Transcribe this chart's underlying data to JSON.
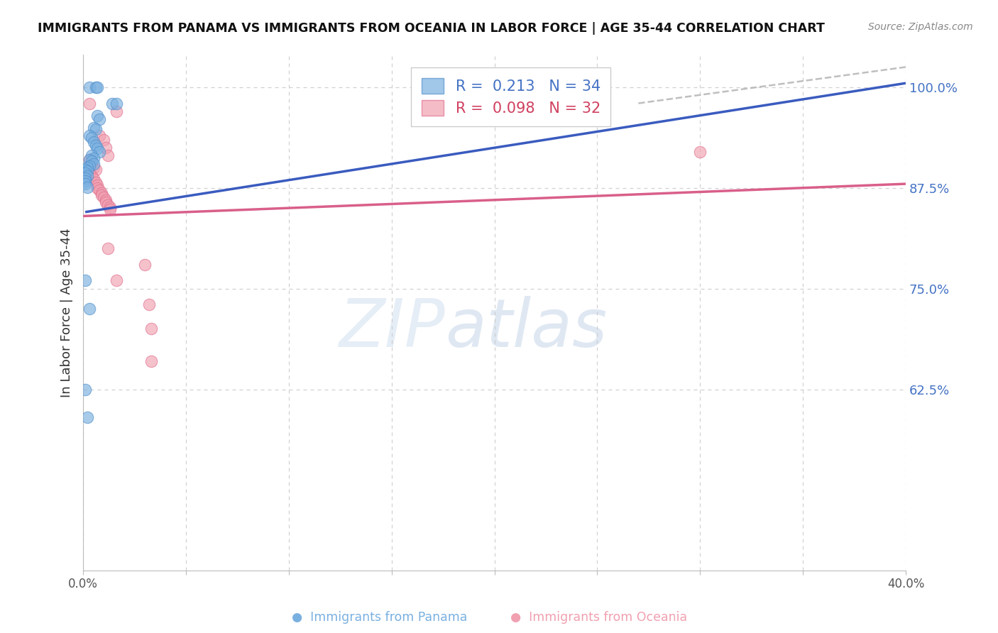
{
  "title": "IMMIGRANTS FROM PANAMA VS IMMIGRANTS FROM OCEANIA IN LABOR FORCE | AGE 35-44 CORRELATION CHART",
  "source": "Source: ZipAtlas.com",
  "ylabel": "In Labor Force | Age 35-44",
  "xlim": [
    0.0,
    0.4
  ],
  "ylim": [
    0.4,
    1.04
  ],
  "yticks": [
    0.625,
    0.75,
    0.875,
    1.0
  ],
  "ytick_labels": [
    "62.5%",
    "75.0%",
    "87.5%",
    "100.0%"
  ],
  "xticks": [
    0.0,
    0.05,
    0.1,
    0.15,
    0.2,
    0.25,
    0.3,
    0.35,
    0.4
  ],
  "xtick_labels": [
    "0.0%",
    "",
    "",
    "",
    "",
    "",
    "",
    "",
    "40.0%"
  ],
  "panama_color": "#7ab0e0",
  "oceania_color": "#f0a0b0",
  "panama_line_color": "#3a5bbf",
  "oceania_line_color": "#d95f8a",
  "panama_edge_color": "#5090cc",
  "oceania_edge_color": "#e07090",
  "dash_color": "#aaaaaa",
  "watermark_color": "#cde4f5",
  "watermark_zip_color": "#c0d8f0",
  "legend_blue": "#4472c4",
  "legend_pink": "#d04060",
  "ytick_color": "#4472c4",
  "panama_points": [
    [
      0.003,
      1.0
    ],
    [
      0.006,
      1.0
    ],
    [
      0.007,
      1.0
    ],
    [
      0.014,
      0.98
    ],
    [
      0.016,
      0.98
    ],
    [
      0.007,
      0.965
    ],
    [
      0.008,
      0.96
    ],
    [
      0.005,
      0.95
    ],
    [
      0.006,
      0.948
    ],
    [
      0.003,
      0.94
    ],
    [
      0.004,
      0.937
    ],
    [
      0.005,
      0.932
    ],
    [
      0.006,
      0.928
    ],
    [
      0.007,
      0.924
    ],
    [
      0.008,
      0.92
    ],
    [
      0.004,
      0.915
    ],
    [
      0.005,
      0.912
    ],
    [
      0.003,
      0.91
    ],
    [
      0.004,
      0.908
    ],
    [
      0.005,
      0.905
    ],
    [
      0.003,
      0.902
    ],
    [
      0.002,
      0.9
    ],
    [
      0.001,
      0.898
    ],
    [
      0.002,
      0.896
    ],
    [
      0.001,
      0.893
    ],
    [
      0.002,
      0.89
    ],
    [
      0.001,
      0.887
    ],
    [
      0.001,
      0.884
    ],
    [
      0.001,
      0.88
    ],
    [
      0.002,
      0.876
    ],
    [
      0.001,
      0.76
    ],
    [
      0.003,
      0.725
    ],
    [
      0.001,
      0.625
    ],
    [
      0.002,
      0.59
    ]
  ],
  "oceania_points": [
    [
      0.003,
      0.98
    ],
    [
      0.016,
      0.97
    ],
    [
      0.008,
      0.94
    ],
    [
      0.01,
      0.935
    ],
    [
      0.011,
      0.925
    ],
    [
      0.012,
      0.915
    ],
    [
      0.003,
      0.91
    ],
    [
      0.004,
      0.905
    ],
    [
      0.005,
      0.9
    ],
    [
      0.006,
      0.898
    ],
    [
      0.003,
      0.893
    ],
    [
      0.004,
      0.89
    ],
    [
      0.005,
      0.886
    ],
    [
      0.006,
      0.882
    ],
    [
      0.007,
      0.878
    ],
    [
      0.007,
      0.875
    ],
    [
      0.008,
      0.872
    ],
    [
      0.009,
      0.869
    ],
    [
      0.009,
      0.866
    ],
    [
      0.01,
      0.863
    ],
    [
      0.011,
      0.86
    ],
    [
      0.011,
      0.857
    ],
    [
      0.012,
      0.854
    ],
    [
      0.013,
      0.851
    ],
    [
      0.013,
      0.848
    ],
    [
      0.012,
      0.8
    ],
    [
      0.03,
      0.78
    ],
    [
      0.016,
      0.76
    ],
    [
      0.032,
      0.73
    ],
    [
      0.033,
      0.7
    ],
    [
      0.033,
      0.66
    ],
    [
      0.3,
      0.92
    ]
  ],
  "blue_line_x": [
    0.001,
    0.4
  ],
  "blue_line_y": [
    0.845,
    1.005
  ],
  "pink_line_x": [
    0.0,
    0.4
  ],
  "pink_line_y": [
    0.84,
    0.88
  ],
  "dash_line_x": [
    0.27,
    0.4
  ],
  "dash_line_y": [
    0.98,
    1.025
  ]
}
